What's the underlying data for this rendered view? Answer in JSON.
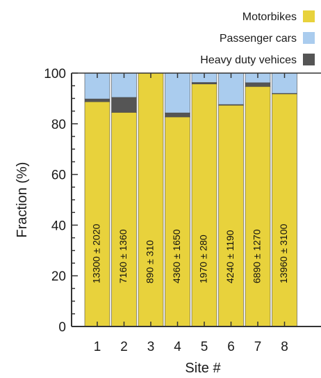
{
  "chart_data": {
    "type": "bar",
    "stacked": true,
    "categories": [
      "1",
      "2",
      "3",
      "4",
      "5",
      "6",
      "7",
      "8"
    ],
    "series": [
      {
        "name": "Motorbikes",
        "color": "#e8d23c",
        "values": [
          88.7,
          84.5,
          100,
          82.7,
          95.7,
          87.3,
          94.7,
          91.8
        ]
      },
      {
        "name": "Heavy duty vehices",
        "color": "#555555",
        "values": [
          1.1,
          5.9,
          0,
          1.6,
          0.6,
          0.3,
          1.5,
          0.2
        ]
      },
      {
        "name": "Passenger cars",
        "color": "#aaccee",
        "values": [
          10.2,
          9.6,
          0,
          15.7,
          3.7,
          12.4,
          3.8,
          8.0
        ]
      }
    ],
    "bar_labels": [
      "13300 ± 2020",
      "7160 ± 1360",
      "890 ± 310",
      "4360 ± 1650",
      "1970 ± 280",
      "4240 ± 1190",
      "6890 ± 1270",
      "13960 ± 3100"
    ],
    "legend": [
      "Motorbikes",
      "Passenger cars",
      "Heavy duty vehices"
    ],
    "legend_position": "top-right",
    "xlabel": "Site #",
    "ylabel": "Fraction (%)",
    "ylim": [
      0,
      100
    ],
    "yticks": [
      "0",
      "20",
      "40",
      "60",
      "80",
      "100"
    ],
    "grid": false
  }
}
